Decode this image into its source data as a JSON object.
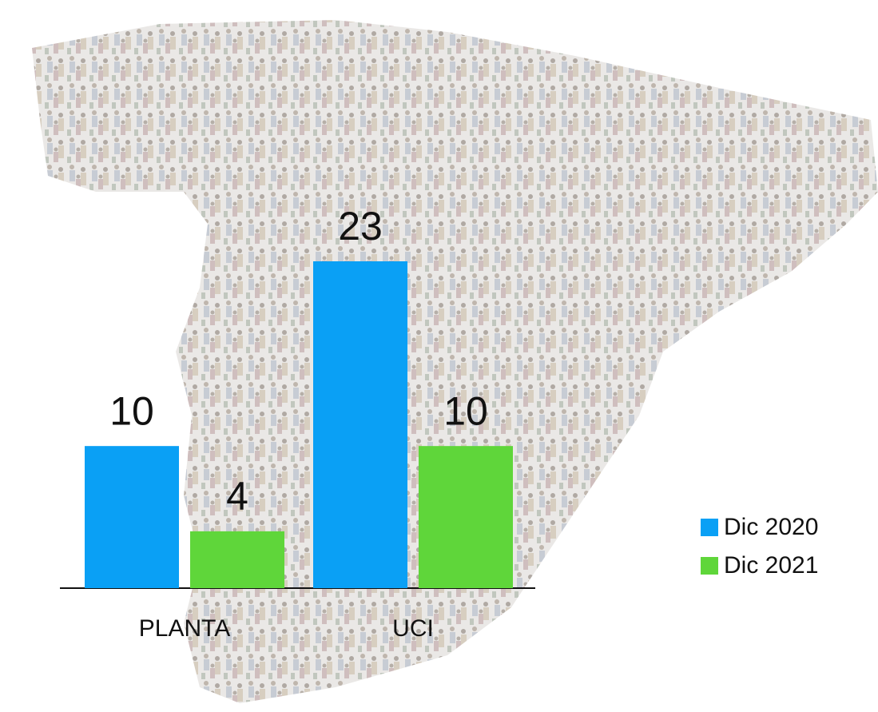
{
  "chart_data": {
    "type": "bar",
    "categories": [
      "PLANTA",
      "UCI"
    ],
    "series": [
      {
        "name": "Dic 2020",
        "color": "#0aa0f5",
        "values": [
          10,
          23
        ]
      },
      {
        "name": "Dic 2021",
        "color": "#5fd63a",
        "values": [
          4,
          10
        ]
      }
    ],
    "legend": "right"
  }
}
